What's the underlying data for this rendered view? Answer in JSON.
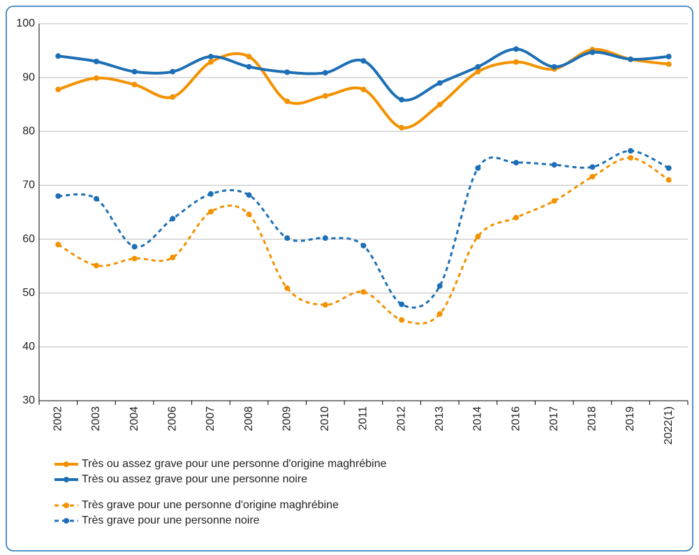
{
  "chart_data": {
    "type": "line",
    "categories": [
      "2002",
      "2003",
      "2004",
      "2006",
      "2007",
      "2008",
      "2009",
      "2010",
      "2011",
      "2012",
      "2013",
      "2014",
      "2016",
      "2017",
      "2018",
      "2019",
      "2022(1)"
    ],
    "series": [
      {
        "name": "Très ou assez grave pour une personne d'origine maghrébine",
        "color": "#f39200",
        "dashed": false,
        "values": [
          87.8,
          89.9,
          88.7,
          86.4,
          92.9,
          93.9,
          85.6,
          86.6,
          87.8,
          80.7,
          85.0,
          91.1,
          92.9,
          91.6,
          95.2,
          93.4,
          92.5
        ]
      },
      {
        "name": "Très ou assez grave pour une personne noire",
        "color": "#1d6fb5",
        "dashed": false,
        "values": [
          94.0,
          93.0,
          91.1,
          91.1,
          93.9,
          92.0,
          91.0,
          90.9,
          93.1,
          85.9,
          89.0,
          92.0,
          95.3,
          92.0,
          94.7,
          93.4,
          93.9
        ]
      },
      {
        "name": "Très grave pour une personne d'origine maghrébine",
        "color": "#f39200",
        "dashed": true,
        "values": [
          59.0,
          55.1,
          56.4,
          56.6,
          65.1,
          64.6,
          50.9,
          47.8,
          50.2,
          45.0,
          46.1,
          60.5,
          64.0,
          67.1,
          71.6,
          75.1,
          71.0
        ]
      },
      {
        "name": "Très grave pour une personne noire",
        "color": "#1d6fb5",
        "dashed": true,
        "values": [
          68.0,
          67.5,
          58.6,
          63.8,
          68.4,
          68.2,
          60.2,
          60.2,
          58.8,
          47.9,
          51.3,
          73.2,
          74.2,
          73.8,
          73.4,
          76.4,
          73.2
        ]
      }
    ],
    "ylim": [
      30,
      100
    ],
    "yticks": [
      30,
      40,
      50,
      60,
      70,
      80,
      90,
      100
    ],
    "grid": true
  }
}
